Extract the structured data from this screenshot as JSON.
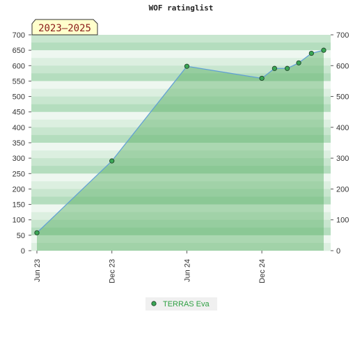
{
  "chart_data": {
    "type": "area",
    "title": "WOF ratinglist",
    "period_label": "2023–2025",
    "x_tick_labels": [
      "Jun 23",
      "Dec 23",
      "Jun 24",
      "Dec 24"
    ],
    "x": [
      "2023-06-01",
      "2023-12-01",
      "2024-06-01",
      "2024-12-01",
      "2025-01-01",
      "2025-02-01",
      "2025-03-01",
      "2025-04-01",
      "2025-05-01"
    ],
    "series": [
      {
        "name": "TERRAS Eva",
        "values": [
          58,
          291,
          598,
          559,
          591,
          591,
          609,
          640,
          650
        ]
      }
    ],
    "ylim": [
      0,
      700
    ],
    "y_ticks": [
      0,
      50,
      100,
      150,
      200,
      250,
      300,
      350,
      400,
      450,
      500,
      550,
      600,
      650,
      700
    ],
    "y2_ticks": [
      0,
      100,
      200,
      300,
      400,
      500,
      600,
      700
    ],
    "xlabel": "",
    "ylabel": "",
    "legend_position": "bottom-center",
    "colors": {
      "line": "#5f9ed6",
      "area": "#58b064",
      "marker_fill": "#3aa655",
      "legend_text": "#2ea042",
      "label_bg": "#ffffcc"
    }
  }
}
